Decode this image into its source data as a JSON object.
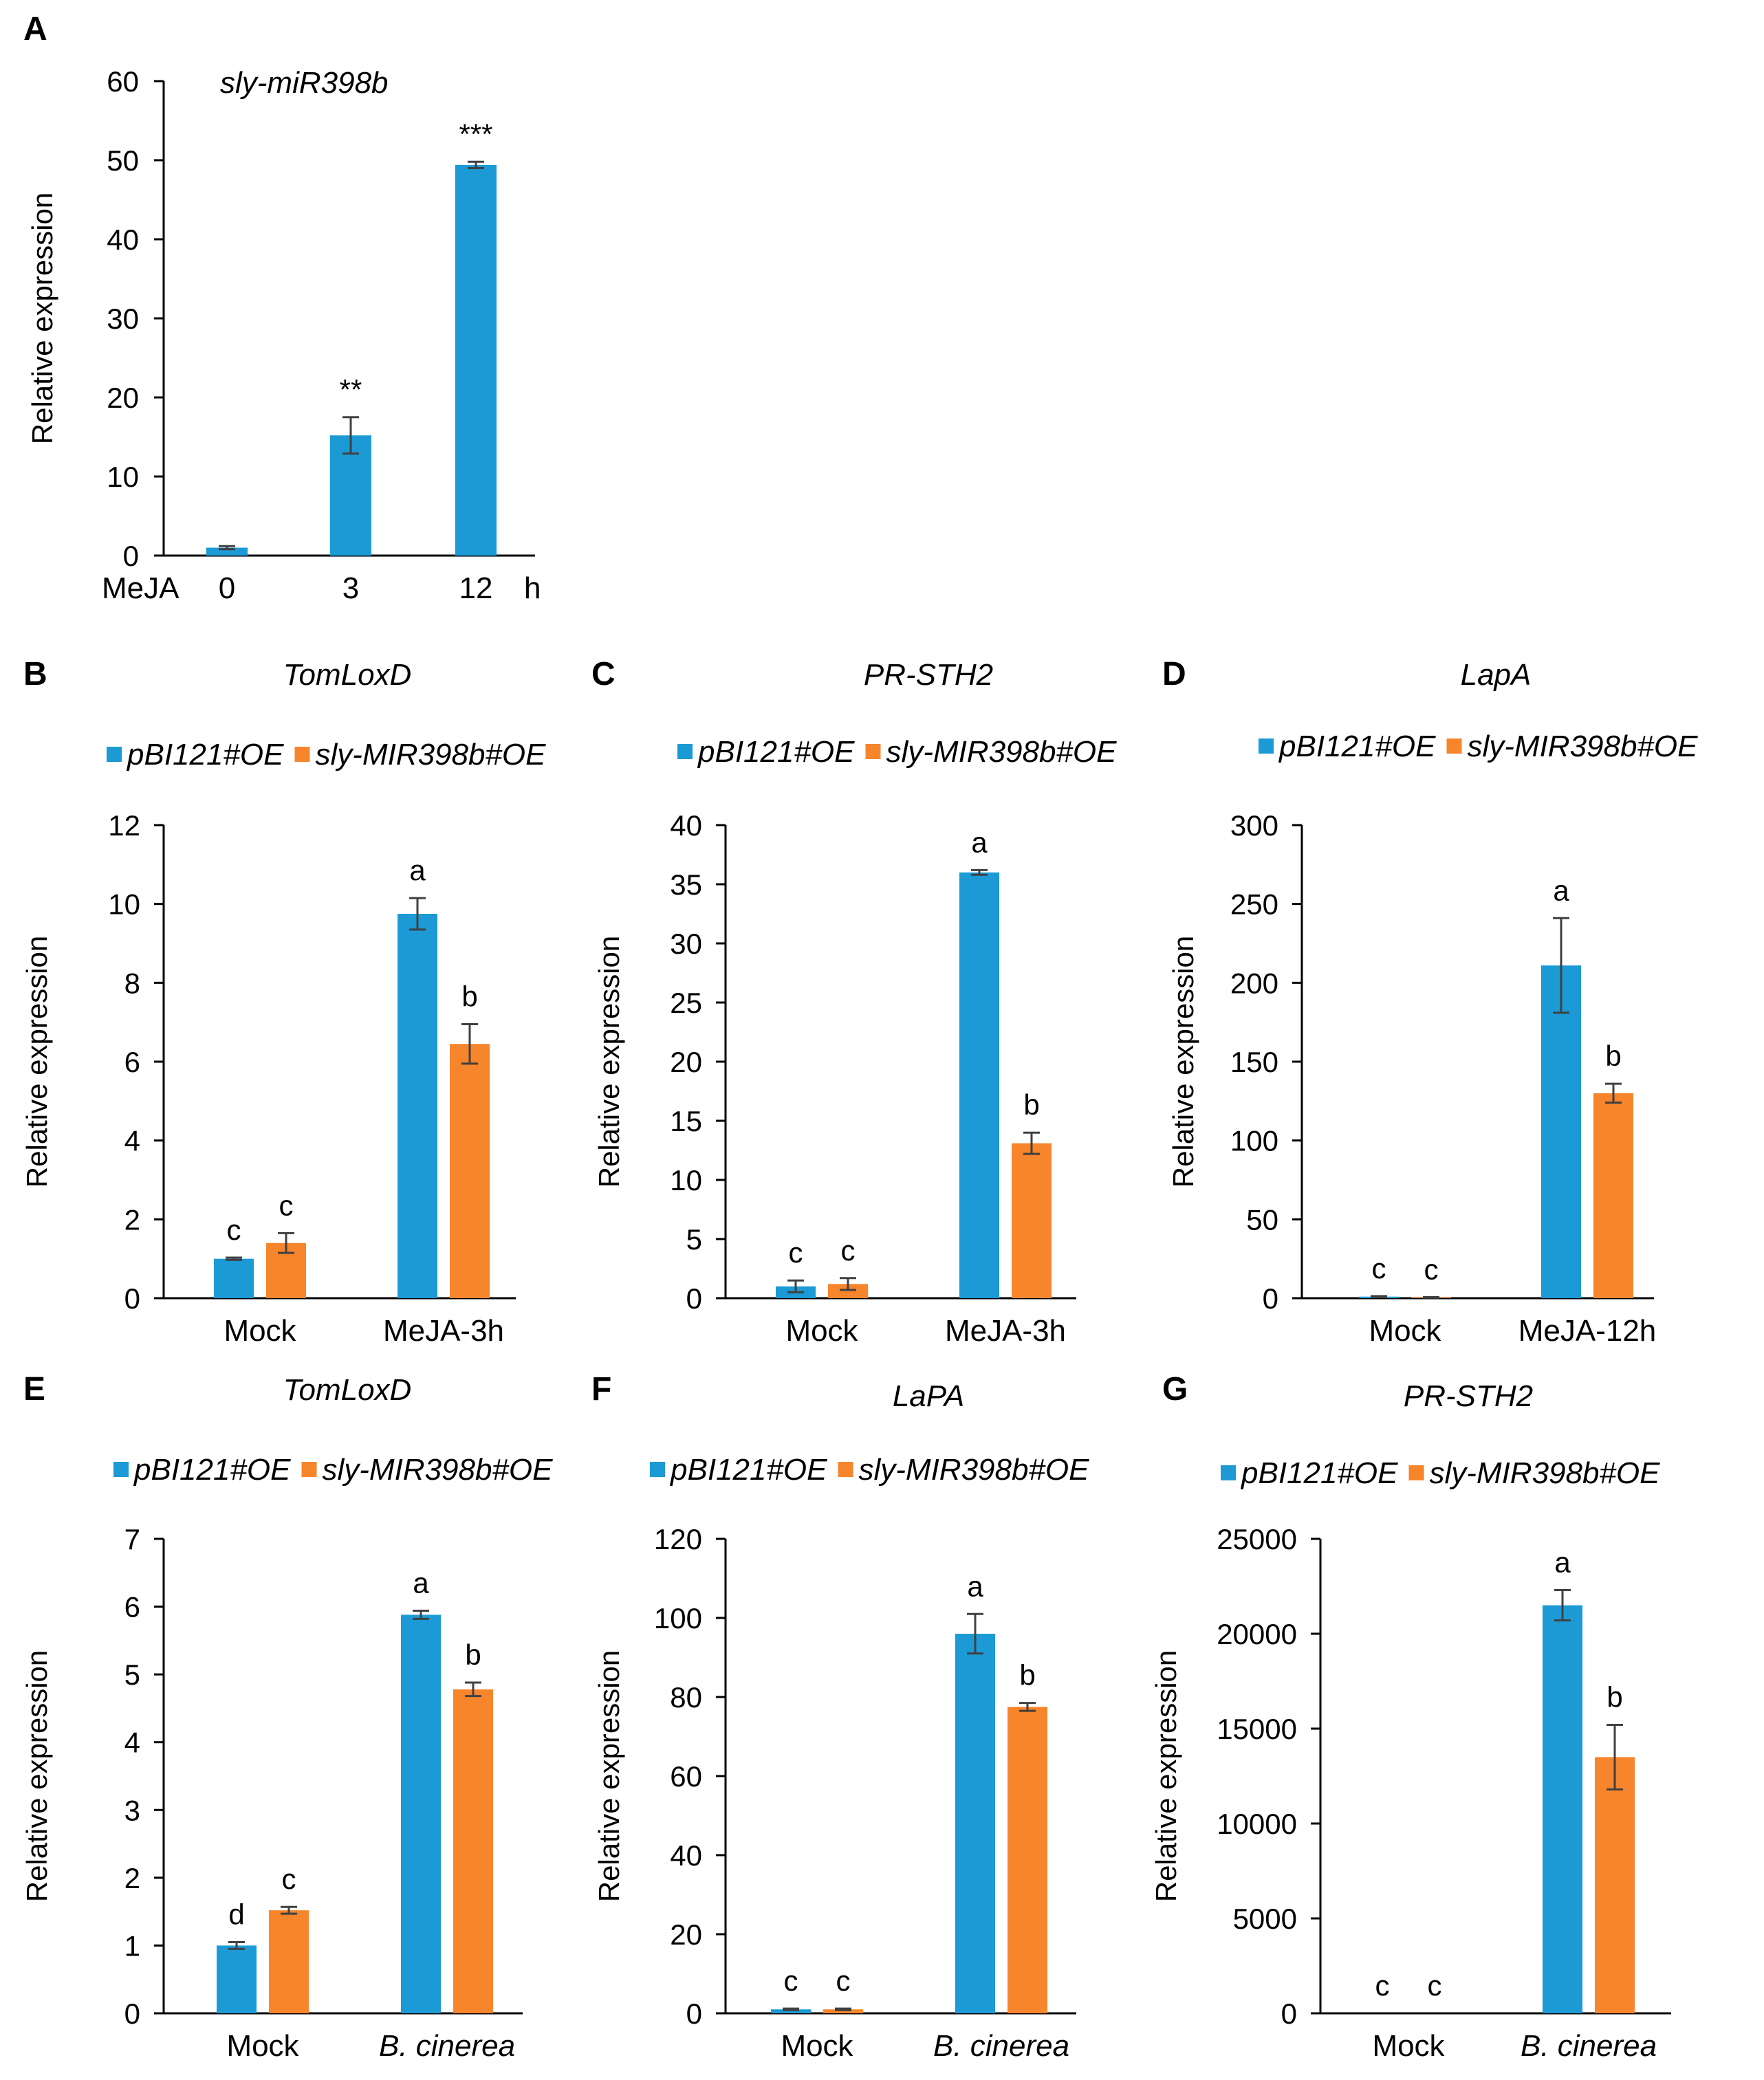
{
  "colors": {
    "s1": "#1b9ad6",
    "s2": "#f7852c",
    "axis": "#000000",
    "err": "#404040"
  },
  "chart_data": [
    {
      "id": "A",
      "type": "bar",
      "letter": "A",
      "title": "sly-miR398b",
      "ylabel": "Relative expression",
      "ylim": [
        0,
        60
      ],
      "yticks": [
        0,
        10,
        20,
        30,
        40,
        50,
        60
      ],
      "xprefix": "MeJA",
      "xunit": "h",
      "categories": [
        "0",
        "3",
        "12"
      ],
      "series": [
        {
          "name": "",
          "values": [
            1,
            15.2,
            49.4
          ],
          "errors": [
            0.2,
            2.3,
            0.4
          ],
          "labels": [
            "",
            "**",
            "***"
          ]
        }
      ]
    },
    {
      "id": "B",
      "type": "bar",
      "letter": "B",
      "title": "TomLoxD",
      "ylabel": "Relative expression",
      "ylim": [
        0,
        12
      ],
      "yticks": [
        0,
        2,
        4,
        6,
        8,
        10,
        12
      ],
      "legend": [
        "pBI121#OE",
        "sly-MIR398b#OE"
      ],
      "categories": [
        "Mock",
        "MeJA-3h"
      ],
      "series": [
        {
          "name": "pBI121#OE",
          "values": [
            1,
            9.75
          ],
          "errors": [
            0.03,
            0.4
          ],
          "labels": [
            "c",
            "a"
          ]
        },
        {
          "name": "sly-MIR398b#OE",
          "values": [
            1.4,
            6.45
          ],
          "errors": [
            0.25,
            0.5
          ],
          "labels": [
            "c",
            "b"
          ]
        }
      ]
    },
    {
      "id": "C",
      "type": "bar",
      "letter": "C",
      "title": "PR-STH2",
      "ylabel": "Relative expression",
      "ylim": [
        0,
        40
      ],
      "yticks": [
        0,
        5,
        10,
        15,
        20,
        25,
        30,
        35,
        40
      ],
      "legend": [
        "pBI121#OE",
        "sly-MIR398b#OE"
      ],
      "categories": [
        "Mock",
        "MeJA-3h"
      ],
      "series": [
        {
          "name": "pBI121#OE",
          "values": [
            1,
            36
          ],
          "errors": [
            0.5,
            0.2
          ],
          "labels": [
            "c",
            "a"
          ]
        },
        {
          "name": "sly-MIR398b#OE",
          "values": [
            1.2,
            13.1
          ],
          "errors": [
            0.5,
            0.9
          ],
          "labels": [
            "c",
            "b"
          ]
        }
      ]
    },
    {
      "id": "D",
      "type": "bar",
      "letter": "D",
      "title": "LapA",
      "ylabel": "Relative expression",
      "ylim": [
        0,
        300
      ],
      "yticks": [
        0,
        50,
        100,
        150,
        200,
        250,
        300
      ],
      "legend": [
        "pBI121#OE",
        "sly-MIR398b#OE"
      ],
      "categories": [
        "Mock",
        "MeJA-12h"
      ],
      "series": [
        {
          "name": "pBI121#OE",
          "values": [
            1,
            211
          ],
          "errors": [
            0.3,
            30
          ],
          "labels": [
            "c",
            "a"
          ]
        },
        {
          "name": "sly-MIR398b#OE",
          "values": [
            0.5,
            130
          ],
          "errors": [
            0.2,
            6
          ],
          "labels": [
            "c",
            "b"
          ]
        }
      ]
    },
    {
      "id": "E",
      "type": "bar",
      "letter": "E",
      "title": "TomLoxD",
      "ylabel": "Relative expression",
      "ylim": [
        0,
        7
      ],
      "yticks": [
        0,
        1,
        2,
        3,
        4,
        5,
        6,
        7
      ],
      "legend": [
        "pBI121#OE",
        "sly-MIR398b#OE"
      ],
      "categories": [
        "Mock",
        "B. cinerea"
      ],
      "italic_categories": [
        false,
        true
      ],
      "series": [
        {
          "name": "pBI121#OE",
          "values": [
            1,
            5.88
          ],
          "errors": [
            0.05,
            0.06
          ],
          "labels": [
            "d",
            "a"
          ]
        },
        {
          "name": "sly-MIR398b#OE",
          "values": [
            1.52,
            4.78
          ],
          "errors": [
            0.05,
            0.1
          ],
          "labels": [
            "c",
            "b"
          ]
        }
      ]
    },
    {
      "id": "F",
      "type": "bar",
      "letter": "F",
      "title": "LaPA",
      "ylabel": "Relative expression",
      "ylim": [
        0,
        120
      ],
      "yticks": [
        0,
        20,
        40,
        60,
        80,
        100,
        120
      ],
      "legend": [
        "pBI121#OE",
        "sly-MIR398b#OE"
      ],
      "categories": [
        "Mock",
        "B. cinerea"
      ],
      "italic_categories": [
        false,
        true
      ],
      "series": [
        {
          "name": "pBI121#OE",
          "values": [
            1,
            96
          ],
          "errors": [
            0.2,
            5
          ],
          "labels": [
            "c",
            "a"
          ]
        },
        {
          "name": "sly-MIR398b#OE",
          "values": [
            1,
            77.5
          ],
          "errors": [
            0.2,
            1
          ],
          "labels": [
            "c",
            "b"
          ]
        }
      ]
    },
    {
      "id": "G",
      "type": "bar",
      "letter": "G",
      "title": "PR-STH2",
      "ylabel": "Relative expression",
      "ylim": [
        0,
        25000
      ],
      "yticks": [
        0,
        5000,
        10000,
        15000,
        20000,
        25000
      ],
      "legend": [
        "pBI121#OE",
        "sly-MIR398b#OE"
      ],
      "categories": [
        "Mock",
        "B. cinerea"
      ],
      "italic_categories": [
        false,
        true
      ],
      "series": [
        {
          "name": "pBI121#OE",
          "values": [
            1,
            21500
          ],
          "errors": [
            0,
            800
          ],
          "labels": [
            "c",
            "a"
          ]
        },
        {
          "name": "sly-MIR398b#OE",
          "values": [
            1,
            13500
          ],
          "errors": [
            0,
            1700
          ],
          "labels": [
            "c",
            "b"
          ]
        }
      ]
    }
  ]
}
